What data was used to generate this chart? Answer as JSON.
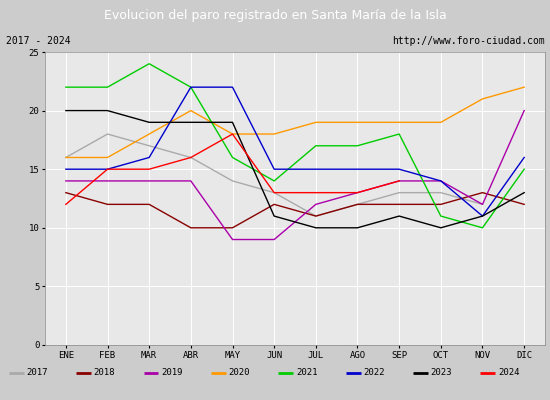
{
  "title": "Evolucion del paro registrado en Santa María de la Isla",
  "subtitle_left": "2017 - 2024",
  "subtitle_right": "http://www.foro-ciudad.com",
  "months": [
    "ENE",
    "FEB",
    "MAR",
    "ABR",
    "MAY",
    "JUN",
    "JUL",
    "AGO",
    "SEP",
    "OCT",
    "NOV",
    "DIC"
  ],
  "ylim": [
    0,
    25
  ],
  "yticks": [
    0,
    5,
    10,
    15,
    20,
    25
  ],
  "series": {
    "2017": {
      "color": "#aaaaaa",
      "data": [
        16,
        18,
        17,
        16,
        14,
        13,
        11,
        12,
        13,
        13,
        12,
        null
      ]
    },
    "2018": {
      "color": "#880000",
      "data": [
        13,
        12,
        12,
        10,
        10,
        12,
        11,
        12,
        12,
        12,
        13,
        12
      ]
    },
    "2019": {
      "color": "#aa00aa",
      "data": [
        14,
        14,
        14,
        14,
        9,
        9,
        12,
        13,
        14,
        14,
        12,
        20
      ]
    },
    "2020": {
      "color": "#ff9900",
      "data": [
        16,
        16,
        18,
        20,
        18,
        18,
        19,
        19,
        19,
        19,
        21,
        22
      ]
    },
    "2021": {
      "color": "#00cc00",
      "data": [
        22,
        22,
        24,
        22,
        16,
        14,
        17,
        17,
        18,
        11,
        10,
        15
      ]
    },
    "2022": {
      "color": "#0000cc",
      "data": [
        15,
        15,
        16,
        22,
        22,
        15,
        15,
        15,
        15,
        14,
        11,
        16
      ]
    },
    "2023": {
      "color": "#000000",
      "data": [
        20,
        20,
        19,
        19,
        19,
        11,
        10,
        10,
        11,
        10,
        11,
        13
      ]
    },
    "2024": {
      "color": "#ff0000",
      "data": [
        12,
        15,
        15,
        16,
        18,
        13,
        13,
        13,
        14,
        null,
        null,
        null
      ]
    }
  },
  "title_bg": "#4477cc",
  "title_color": "#ffffff",
  "fig_bg": "#cccccc",
  "subtitle_bg": "#eeeeee",
  "plot_bg": "#e8e8e8",
  "grid_color": "#ffffff"
}
